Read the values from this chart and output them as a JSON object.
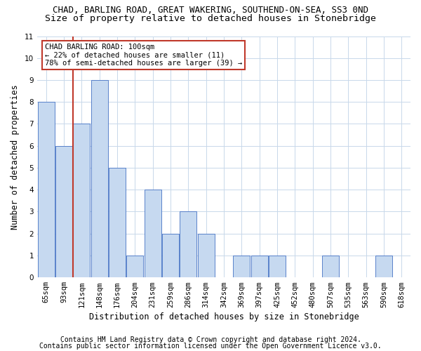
{
  "title1": "CHAD, BARLING ROAD, GREAT WAKERING, SOUTHEND-ON-SEA, SS3 0ND",
  "title2": "Size of property relative to detached houses in Stonebridge",
  "xlabel": "Distribution of detached houses by size in Stonebridge",
  "ylabel": "Number of detached properties",
  "categories": [
    "65sqm",
    "93sqm",
    "121sqm",
    "148sqm",
    "176sqm",
    "204sqm",
    "231sqm",
    "259sqm",
    "286sqm",
    "314sqm",
    "342sqm",
    "369sqm",
    "397sqm",
    "425sqm",
    "452sqm",
    "480sqm",
    "507sqm",
    "535sqm",
    "563sqm",
    "590sqm",
    "618sqm"
  ],
  "values": [
    8,
    6,
    7,
    9,
    5,
    1,
    4,
    2,
    3,
    2,
    0,
    1,
    1,
    1,
    0,
    0,
    1,
    0,
    0,
    1,
    0
  ],
  "bar_color": "#c6d9f0",
  "bar_edge_color": "#4472c4",
  "vline_color": "#c0392b",
  "vline_x_index": 1.5,
  "annotation_line1": "CHAD BARLING ROAD: 100sqm",
  "annotation_line2": "← 22% of detached houses are smaller (11)",
  "annotation_line3": "78% of semi-detached houses are larger (39) →",
  "annotation_box_color": "#c0392b",
  "ylim_max": 11,
  "yticks": [
    0,
    1,
    2,
    3,
    4,
    5,
    6,
    7,
    8,
    9,
    10,
    11
  ],
  "background_color": "#ffffff",
  "grid_color": "#c8d8ea",
  "footer1": "Contains HM Land Registry data © Crown copyright and database right 2024.",
  "footer2": "Contains public sector information licensed under the Open Government Licence v3.0.",
  "title1_fontsize": 9.0,
  "title2_fontsize": 9.5,
  "xlabel_fontsize": 8.5,
  "ylabel_fontsize": 8.5,
  "tick_fontsize": 7.5,
  "annotation_fontsize": 7.5,
  "footer_fontsize": 7.0
}
